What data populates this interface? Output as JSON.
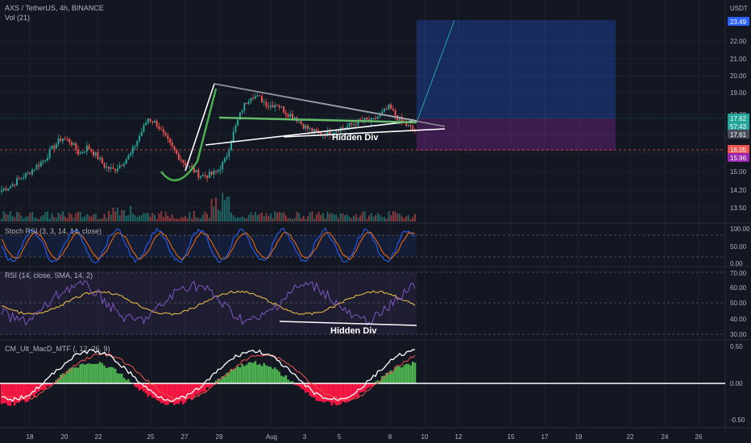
{
  "header": {
    "symbol_line": "AXS / TetherUS, 4h, BINANCE",
    "vol_label": "Vol (21)"
  },
  "colors": {
    "background": "#131722",
    "up": "#26a69a",
    "down": "#ef5350",
    "text": "#b2b5be",
    "grid": "#1e222d",
    "target_zone": "#2962ff",
    "stop_zone": "#9c27b0",
    "current_price": "#26a69a",
    "stoch_k": "#2962ff",
    "stoch_d": "#ff6d00",
    "rsi": "#7e57c2",
    "rsi_ma": "#f7c548",
    "macd_pos": "#4caf50",
    "macd_neg": "#ff1744",
    "pattern_white": "#ffffff",
    "pattern_green": "#66bb6a",
    "cup_green": "#4caf50"
  },
  "price_axis": {
    "unit": "USDT",
    "ticks": [
      "22.00",
      "21.00",
      "20.00",
      "19.00",
      "18.00",
      "17.00",
      "16.00",
      "15.00",
      "14.20",
      "13.50"
    ],
    "tags": [
      {
        "value": "23.49",
        "color": "#2962ff"
      },
      {
        "value": "17.62",
        "color": "#26a69a"
      },
      {
        "value": "57:43",
        "color": "#26a69a"
      },
      {
        "value": "17.61",
        "color": "#4a4e5a"
      },
      {
        "value": "16.05",
        "color": "#ef5350"
      },
      {
        "value": "15.96",
        "color": "#9c27b0"
      }
    ],
    "ylim": [
      13.3,
      23.9
    ]
  },
  "annotations": {
    "price_divergence": "Hidden Div",
    "rsi_divergence": "Hidden Div"
  },
  "panes": {
    "stoch": {
      "label": "Stoch RSI (3, 3, 14, 14, close)",
      "ticks": [
        "100.00",
        "50.00",
        "0.00"
      ]
    },
    "rsi": {
      "label": "RSI (14, close, SMA, 14, 2)",
      "ticks": [
        "70.00",
        "60.00",
        "50.00",
        "40.00",
        "30.00"
      ]
    },
    "macd": {
      "label": "CM_Ult_MacD_MTF (, 12, 26, 9)",
      "ticks": [
        "0.50",
        "0.00",
        "-0.50"
      ]
    }
  },
  "time_axis": {
    "labels": [
      "18",
      "20",
      "22",
      "25",
      "27",
      "29",
      "Aug",
      "3",
      "5",
      "8",
      "10",
      "12",
      "15",
      "17",
      "19",
      "22",
      "24",
      "26"
    ]
  },
  "chart_data": {
    "type": "candlestick",
    "title": "AXS / TetherUS, 4h, BINANCE",
    "ylim": [
      13.3,
      23.9
    ],
    "price_series_close": [
      14.3,
      14.5,
      14.9,
      15.2,
      15.6,
      16.0,
      16.7,
      17.2,
      17.0,
      16.3,
      16.7,
      16.2,
      15.6,
      15.4,
      15.8,
      16.3,
      17.3,
      18.3,
      18.0,
      17.2,
      16.5,
      15.9,
      15.5,
      15.1,
      15.1,
      15.3,
      16.0,
      17.6,
      18.9,
      19.6,
      19.4,
      19.0,
      19.1,
      18.6,
      18.4,
      17.9,
      17.6,
      17.4,
      17.5,
      17.7,
      17.8,
      18.0,
      18.2,
      18.1,
      18.5,
      18.9,
      18.3,
      17.9,
      17.6
    ],
    "current_price": 17.62,
    "target": 23.49,
    "entry": 17.61,
    "stop": 16.05,
    "stop_zone_low": 15.96
  }
}
